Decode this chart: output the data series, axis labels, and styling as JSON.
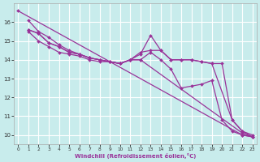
{
  "xlabel": "Windchill (Refroidissement éolien,°C)",
  "bg_color": "#c8ecec",
  "line_color": "#993399",
  "grid_color": "#ffffff",
  "ylim": [
    9.5,
    17.0
  ],
  "xlim": [
    -0.4,
    23.4
  ],
  "yticks": [
    10,
    11,
    12,
    13,
    14,
    15,
    16
  ],
  "xticks": [
    0,
    1,
    2,
    3,
    4,
    5,
    6,
    7,
    8,
    9,
    10,
    11,
    12,
    13,
    14,
    15,
    16,
    17,
    18,
    19,
    20,
    21,
    22,
    23
  ],
  "lines": [
    {
      "x": [
        1,
        2,
        3,
        4,
        5,
        6,
        7,
        8,
        9,
        10,
        11,
        12,
        13,
        14,
        15,
        16,
        17,
        18,
        19,
        20,
        21,
        22,
        23
      ],
      "y": [
        16.1,
        15.5,
        15.2,
        14.8,
        14.5,
        14.3,
        14.1,
        14.0,
        13.9,
        13.8,
        14.0,
        14.0,
        14.4,
        14.0,
        13.5,
        12.5,
        12.6,
        12.7,
        12.9,
        10.8,
        10.2,
        10.0,
        9.9
      ]
    },
    {
      "x": [
        1,
        2,
        3,
        4,
        5,
        6,
        7,
        8,
        9,
        10,
        11,
        12,
        13,
        14,
        15,
        16,
        17,
        18,
        19,
        21,
        22,
        23
      ],
      "y": [
        15.6,
        15.4,
        14.9,
        14.7,
        14.4,
        14.3,
        14.1,
        14.0,
        13.9,
        13.8,
        14.0,
        14.3,
        15.3,
        14.5,
        14.0,
        14.0,
        14.0,
        13.9,
        13.8,
        10.8,
        10.2,
        10.0
      ]
    },
    {
      "x": [
        1,
        2,
        3,
        4,
        5,
        6,
        7,
        8,
        9,
        10,
        11,
        12,
        22,
        23
      ],
      "y": [
        15.5,
        15.0,
        14.7,
        14.4,
        14.3,
        14.2,
        14.0,
        13.9,
        13.9,
        13.8,
        14.0,
        14.0,
        10.1,
        9.9
      ]
    },
    {
      "x": [
        1,
        2,
        3,
        4,
        5,
        6,
        7,
        8,
        9,
        10,
        11,
        12,
        13,
        14,
        15,
        16,
        17,
        18,
        19,
        20,
        21,
        22,
        23
      ],
      "y": [
        15.6,
        15.4,
        14.9,
        14.7,
        14.4,
        14.3,
        14.1,
        14.0,
        13.9,
        13.8,
        14.0,
        14.4,
        14.5,
        14.5,
        14.0,
        14.0,
        14.0,
        13.9,
        13.8,
        13.8,
        10.8,
        10.2,
        9.9
      ]
    },
    {
      "x": [
        0,
        22,
        23
      ],
      "y": [
        16.6,
        10.0,
        9.9
      ]
    }
  ]
}
